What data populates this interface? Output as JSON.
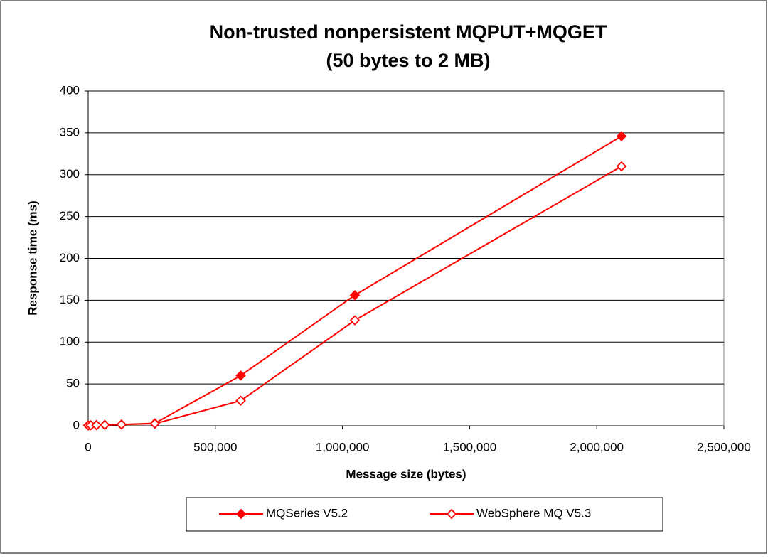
{
  "chart_data": {
    "type": "line",
    "title": [
      "Non-trusted nonpersistent MQPUT+MQGET",
      "(50 bytes to 2 MB)"
    ],
    "x_label": "Message size (bytes)",
    "y_label": "Response time (ms)",
    "x": [
      50,
      1024,
      10240,
      32768,
      65536,
      131072,
      262144,
      600000,
      1048576,
      2097152
    ],
    "series": [
      {
        "name": "MQSeries V5.2",
        "color": "#ff0000",
        "marker": "filled-diamond",
        "values": [
          0.5,
          0.5,
          0.6,
          0.8,
          1,
          1.5,
          3,
          60,
          156,
          346
        ]
      },
      {
        "name": "WebSphere MQ V5.3",
        "color": "#ff0000",
        "marker": "open-diamond",
        "values": [
          0.4,
          0.4,
          0.5,
          0.7,
          1,
          1.5,
          2.5,
          30,
          126,
          310
        ]
      }
    ],
    "xlim": [
      0,
      2500000
    ],
    "xticks": [
      0,
      {
        "value": 500000,
        "label": "500,000"
      },
      {
        "value": 1000000,
        "label": "1,000,000"
      },
      {
        "value": 1500000,
        "label": "1,500,000"
      },
      {
        "value": 2000000,
        "label": "2,000,000"
      },
      {
        "value": 2500000,
        "label": "2,500,000"
      }
    ],
    "ylim": [
      0,
      400
    ],
    "yticks": [
      0,
      50,
      100,
      150,
      200,
      250,
      300,
      350,
      400
    ],
    "grid": true,
    "legend": "bottom"
  }
}
